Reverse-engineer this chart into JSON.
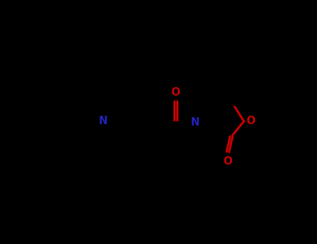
{
  "bg_color": "#000000",
  "bond_color": "#000000",
  "N_color": "#2222bb",
  "O_color": "#cc0000",
  "line_width": 2.2,
  "dbo": 0.018,
  "figsize": [
    4.55,
    3.5
  ],
  "dpi": 100,
  "xlim": [
    0,
    4.55
  ],
  "ylim": [
    0,
    3.5
  ]
}
